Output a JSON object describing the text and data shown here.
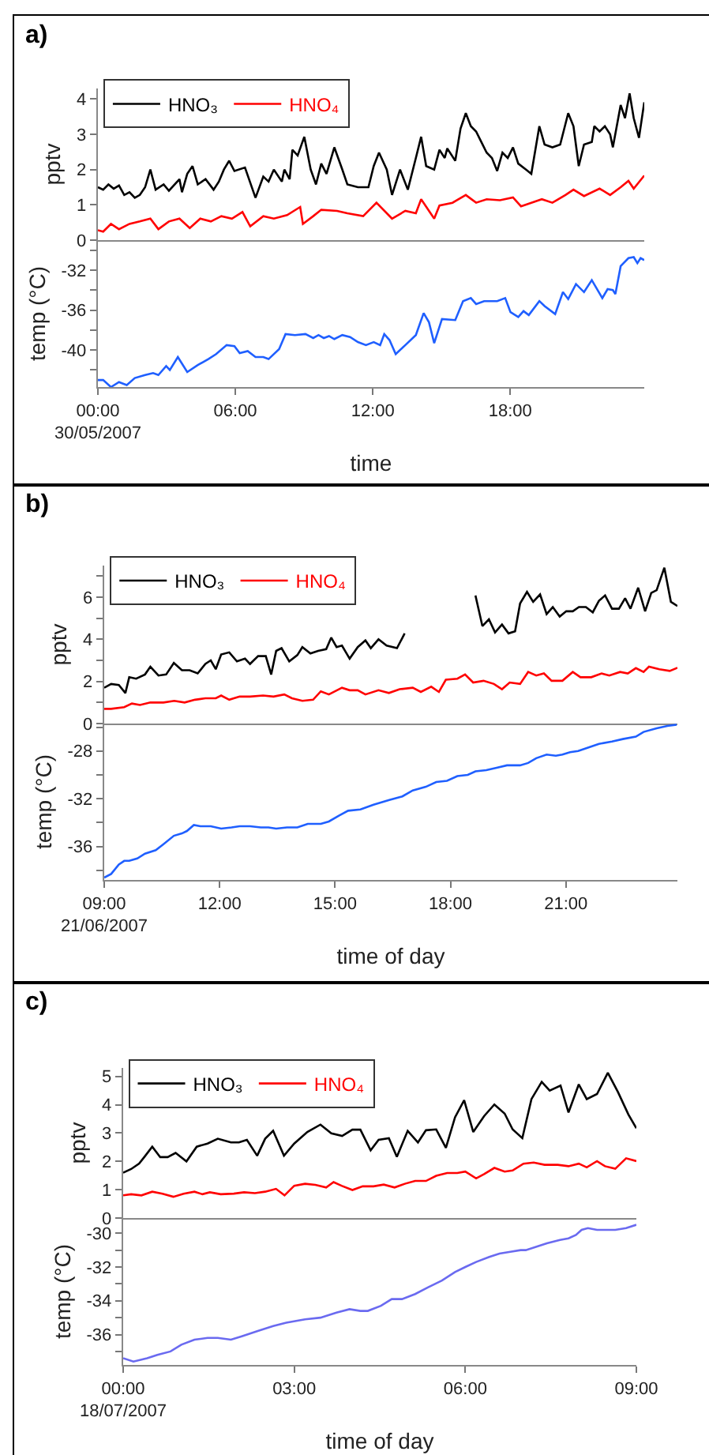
{
  "chart_data": [
    {
      "type": "line",
      "title": "a)",
      "ylabel": "pptv",
      "legend": "top left",
      "tick_labels": "y",
      "xlim": [
        0,
        23.85
      ],
      "ylim": [
        0,
        4.3
      ],
      "yticks": [
        0,
        1,
        2,
        3,
        4
      ],
      "series": [
        {
          "name": "HNO₃",
          "color": "#000000",
          "x": [
            0,
            0.23,
            0.46,
            0.69,
            0.92,
            1.15,
            1.38,
            1.61,
            1.83,
            2.06,
            2.29,
            2.52,
            2.87,
            3.1,
            3.56,
            3.67,
            3.9,
            4.13,
            4.36,
            4.7,
            5.05,
            5.28,
            5.5,
            5.73,
            5.96,
            6.42,
            6.88,
            7.22,
            7.45,
            7.68,
            8.03,
            8.14,
            8.37,
            8.49,
            8.72,
            9.01,
            9.29,
            9.52,
            9.75,
            9.98,
            10.32,
            10.67,
            10.89,
            11.35,
            11.81,
            12.04,
            12.27,
            12.61,
            12.84,
            13.19,
            13.53,
            13.88,
            14.11,
            14.33,
            14.68,
            14.91,
            15.14,
            15.25,
            15.6,
            15.83,
            16.06,
            16.28,
            16.51,
            16.74,
            16.97,
            17.2,
            17.43,
            17.66,
            17.89,
            18.12,
            18.35,
            18.69,
            18.92,
            19.27,
            19.5,
            19.84,
            20.18,
            20.53,
            20.76,
            20.99,
            21.22,
            21.56,
            21.67,
            21.9,
            22.13,
            22.36,
            22.48,
            22.82,
            23.01,
            23.21,
            23.39,
            23.62,
            23.85
          ],
          "values": [
            1.5,
            1.43,
            1.58,
            1.46,
            1.55,
            1.28,
            1.36,
            1.2,
            1.28,
            1.5,
            2.0,
            1.43,
            1.58,
            1.4,
            1.73,
            1.36,
            1.88,
            2.1,
            1.58,
            1.73,
            1.43,
            1.66,
            2.0,
            2.25,
            1.96,
            2.06,
            1.2,
            1.8,
            1.66,
            2.0,
            1.66,
            2.0,
            1.73,
            2.56,
            2.4,
            2.93,
            2.0,
            1.58,
            2.17,
            1.88,
            2.63,
            2.0,
            1.58,
            1.5,
            1.5,
            2.1,
            2.48,
            2.0,
            1.28,
            2.0,
            1.43,
            2.33,
            2.93,
            2.1,
            2.0,
            2.56,
            2.33,
            2.6,
            2.25,
            3.16,
            3.6,
            3.23,
            3.08,
            2.78,
            2.48,
            2.33,
            1.96,
            2.48,
            2.33,
            2.63,
            2.17,
            2.0,
            1.88,
            3.23,
            2.71,
            2.63,
            2.71,
            3.6,
            3.23,
            2.1,
            2.71,
            2.78,
            3.23,
            3.08,
            3.23,
            3.0,
            2.63,
            3.83,
            3.46,
            4.16,
            3.46,
            2.9,
            3.91
          ]
        },
        {
          "name": "HNO₄",
          "color": "#ff0000",
          "x": [
            0,
            0.23,
            0.57,
            0.92,
            1.38,
            1.83,
            2.29,
            2.64,
            3.1,
            3.56,
            4.01,
            4.47,
            4.93,
            5.39,
            5.85,
            6.31,
            6.65,
            7.22,
            7.68,
            8.26,
            8.83,
            8.95,
            9.4,
            9.75,
            10.44,
            10.89,
            11.58,
            12.16,
            12.84,
            13.42,
            13.88,
            14.11,
            14.68,
            14.91,
            15.48,
            16.06,
            16.51,
            16.97,
            17.55,
            18.12,
            18.47,
            18.92,
            19.38,
            19.84,
            20.41,
            20.76,
            21.22,
            21.9,
            22.36,
            22.82,
            23.16,
            23.39,
            23.85
          ],
          "values": [
            0.28,
            0.24,
            0.46,
            0.31,
            0.46,
            0.53,
            0.61,
            0.31,
            0.53,
            0.61,
            0.34,
            0.61,
            0.53,
            0.68,
            0.61,
            0.8,
            0.39,
            0.68,
            0.61,
            0.71,
            0.94,
            0.46,
            0.68,
            0.86,
            0.83,
            0.76,
            0.68,
            1.06,
            0.61,
            0.83,
            0.76,
            1.16,
            0.61,
            0.98,
            1.06,
            1.28,
            1.06,
            1.16,
            1.13,
            1.21,
            0.96,
            1.06,
            1.16,
            1.06,
            1.28,
            1.43,
            1.25,
            1.46,
            1.28,
            1.5,
            1.68,
            1.46,
            1.83
          ]
        }
      ]
    },
    {
      "type": "line",
      "xlabel": "time",
      "ylabel": "temp (°C)",
      "xlim": [
        0,
        23.85
      ],
      "xticks": [
        {
          "value": 0,
          "label": "00:00\n30/05/2007"
        },
        {
          "value": 6,
          "label": "06:00"
        },
        {
          "value": 12,
          "label": "12:00"
        },
        {
          "value": 18,
          "label": "18:00"
        }
      ],
      "ylim": [
        -43.7,
        -29
      ],
      "yticks": [
        {
          "value": -30,
          "label": null
        },
        -32,
        {
          "value": -34,
          "label": null
        },
        -36,
        {
          "value": -38,
          "label": null
        },
        -40,
        {
          "value": -42,
          "label": null
        }
      ],
      "series": [
        {
          "color": "#1f5fff",
          "x": [
            0,
            0.23,
            0.57,
            0.92,
            1.26,
            1.61,
            2.06,
            2.41,
            2.64,
            2.98,
            3.14,
            3.49,
            3.9,
            4.36,
            4.82,
            5.16,
            5.62,
            5.96,
            6.19,
            6.54,
            6.88,
            7.22,
            7.45,
            7.91,
            8.19,
            8.6,
            9.06,
            9.4,
            9.63,
            9.86,
            10.09,
            10.32,
            10.67,
            11.01,
            11.35,
            11.7,
            12.04,
            12.32,
            12.5,
            12.73,
            13.0,
            13.42,
            13.88,
            14.22,
            14.45,
            14.68,
            15.02,
            15.6,
            15.94,
            16.28,
            16.51,
            16.86,
            17.43,
            17.78,
            18.01,
            18.35,
            18.58,
            18.81,
            19.27,
            19.5,
            19.96,
            20.3,
            20.53,
            20.87,
            21.22,
            21.56,
            22.02,
            22.25,
            22.48,
            22.59,
            22.82,
            23.16,
            23.39,
            23.55,
            23.69,
            23.85
          ],
          "values": [
            -43.0,
            -43.0,
            -43.7,
            -43.2,
            -43.5,
            -42.8,
            -42.5,
            -42.3,
            -42.5,
            -41.6,
            -42,
            -40.7,
            -42.2,
            -41.5,
            -40.9,
            -40.4,
            -39.5,
            -39.6,
            -40.3,
            -40.1,
            -40.7,
            -40.7,
            -40.9,
            -39.9,
            -38.4,
            -38.5,
            -38.4,
            -38.8,
            -38.5,
            -38.8,
            -38.6,
            -38.9,
            -38.5,
            -38.7,
            -39.2,
            -39.5,
            -39.2,
            -39.5,
            -38.4,
            -39.0,
            -40.4,
            -39.5,
            -38.5,
            -36.3,
            -37.2,
            -39.3,
            -36.9,
            -37,
            -35.1,
            -34.8,
            -35.4,
            -35.1,
            -35.1,
            -34.8,
            -36.2,
            -36.7,
            -36.1,
            -36.5,
            -35.1,
            -35.6,
            -36.4,
            -34.2,
            -34.9,
            -33.4,
            -34.2,
            -33,
            -34.8,
            -33.9,
            -34.0,
            -34.4,
            -31.6,
            -30.8,
            -30.7,
            -31.3,
            -30.8,
            -31
          ]
        }
      ]
    },
    {
      "type": "line",
      "title": "b)",
      "ylabel": "pptv",
      "legend": "top left",
      "tick_labels": "y",
      "xlim": [
        9,
        23.9
      ],
      "ylim": [
        0,
        7.5
      ],
      "yticks": [
        0,
        {
          "value": 1,
          "label": null
        },
        2,
        {
          "value": 3,
          "label": null
        },
        4,
        {
          "value": 5,
          "label": null
        },
        6,
        {
          "value": 7,
          "label": null
        }
      ],
      "series": [
        {
          "name": "HNO₃",
          "color": "#000000",
          "x": [
            9.0,
            9.18,
            9.38,
            9.55,
            9.65,
            9.83,
            10.06,
            10.2,
            10.41,
            10.61,
            10.81,
            11.02,
            11.22,
            11.43,
            11.63,
            11.77,
            11.9,
            12.04,
            12.25,
            12.45,
            12.66,
            12.79,
            13.0,
            13.2,
            13.34,
            13.47,
            13.61,
            13.81,
            14.02,
            14.15,
            14.36,
            14.56,
            14.77,
            14.9,
            15.04,
            15.18,
            15.38,
            15.59,
            15.79,
            15.93,
            16.13,
            16.34,
            16.61,
            16.81,
            17.7,
            18.65,
            18.83,
            19.0,
            19.16,
            19.34,
            19.51,
            19.68,
            19.81,
            19.99,
            20.15,
            20.33,
            20.5,
            20.66,
            20.84,
            21.01,
            21.18,
            21.34,
            21.52,
            21.7,
            21.86,
            22.02,
            22.2,
            22.38,
            22.54,
            22.68,
            22.88,
            23.06,
            23.22,
            23.36,
            23.56,
            23.73,
            23.9
          ],
          "values": [
            1.7,
            1.88,
            1.83,
            1.45,
            2.2,
            2.13,
            2.33,
            2.7,
            2.28,
            2.33,
            2.88,
            2.53,
            2.53,
            2.38,
            2.83,
            3.0,
            2.58,
            3.28,
            3.38,
            2.95,
            3.08,
            2.83,
            3.2,
            3.2,
            2.33,
            3.45,
            3.58,
            2.95,
            3.25,
            3.63,
            3.33,
            3.45,
            3.53,
            4.08,
            3.63,
            3.7,
            3.08,
            3.63,
            3.95,
            3.58,
            4.0,
            3.7,
            3.58,
            4.28,
            null,
            6.08,
            4.63,
            4.95,
            4.33,
            4.7,
            4.28,
            4.38,
            5.7,
            6.25,
            5.78,
            6.13,
            5.2,
            5.53,
            5.08,
            5.33,
            5.33,
            5.53,
            5.53,
            5.28,
            5.83,
            6.08,
            5.45,
            5.45,
            5.95,
            5.45,
            6.45,
            5.33,
            6.2,
            6.33,
            7.4,
            5.78,
            5.58
          ]
        },
        {
          "name": "HNO₄",
          "color": "#ff0000",
          "x": [
            9.0,
            9.18,
            9.52,
            9.72,
            9.93,
            10.2,
            10.54,
            10.82,
            11.09,
            11.36,
            11.63,
            11.9,
            12.04,
            12.25,
            12.52,
            12.79,
            13.13,
            13.4,
            13.68,
            13.88,
            14.15,
            14.43,
            14.63,
            14.84,
            15.18,
            15.38,
            15.59,
            15.79,
            16.13,
            16.4,
            16.68,
            17.02,
            17.23,
            17.5,
            17.7,
            17.88,
            18.18,
            18.38,
            18.59,
            18.86,
            19.13,
            19.34,
            19.54,
            19.81,
            20.02,
            20.23,
            20.43,
            20.63,
            20.91,
            21.18,
            21.38,
            21.66,
            21.93,
            22.13,
            22.41,
            22.61,
            22.82,
            23.02,
            23.16,
            23.43,
            23.7,
            23.9
          ],
          "values": [
            0.7,
            0.7,
            0.78,
            0.95,
            0.88,
            1.0,
            1.0,
            1.08,
            1.0,
            1.13,
            1.2,
            1.2,
            1.33,
            1.13,
            1.28,
            1.28,
            1.33,
            1.28,
            1.38,
            1.2,
            1.08,
            1.13,
            1.53,
            1.38,
            1.7,
            1.58,
            1.58,
            1.38,
            1.58,
            1.45,
            1.63,
            1.7,
            1.5,
            1.75,
            1.5,
            2.08,
            2.13,
            2.33,
            1.95,
            2.03,
            1.88,
            1.63,
            1.95,
            1.88,
            2.45,
            2.28,
            2.38,
            2.03,
            2.03,
            2.45,
            2.2,
            2.2,
            2.38,
            2.28,
            2.45,
            2.38,
            2.63,
            2.45,
            2.7,
            2.58,
            2.5,
            2.65
          ]
        }
      ]
    },
    {
      "type": "line",
      "xlabel": "time of day",
      "ylabel": "temp (°C)",
      "xlim": [
        9,
        23.9
      ],
      "xticks": [
        {
          "value": 9,
          "label": "09:00\n21/06/2007"
        },
        {
          "value": 12,
          "label": "12:00"
        },
        {
          "value": 15,
          "label": "15:00"
        },
        {
          "value": 18,
          "label": "18:00"
        },
        {
          "value": 21,
          "label": "21:00"
        }
      ],
      "ylim": [
        -38.8,
        -25.7
      ],
      "yticks": [
        {
          "value": -26,
          "label": null
        },
        -28,
        {
          "value": -30,
          "label": null
        },
        -32,
        {
          "value": -34,
          "label": null
        },
        -36,
        {
          "value": -38,
          "label": null
        }
      ],
      "series": [
        {
          "color": "#1f5fff",
          "x": [
            9.0,
            9.18,
            9.38,
            9.52,
            9.65,
            9.86,
            10.06,
            10.34,
            10.54,
            10.81,
            11.02,
            11.15,
            11.33,
            11.5,
            11.77,
            12.04,
            12.31,
            12.52,
            12.79,
            13.07,
            13.27,
            13.47,
            13.75,
            14.02,
            14.29,
            14.63,
            14.84,
            15.11,
            15.34,
            15.66,
            16.0,
            16.41,
            16.75,
            17.02,
            17.36,
            17.63,
            17.91,
            18.18,
            18.45,
            18.65,
            18.93,
            19.2,
            19.47,
            19.81,
            20.02,
            20.23,
            20.5,
            20.74,
            20.91,
            21.11,
            21.32,
            21.59,
            21.86,
            22.2,
            22.48,
            22.82,
            23.02,
            23.36,
            23.64,
            23.88
          ],
          "values": [
            -38.6,
            -38.3,
            -37.5,
            -37.2,
            -37.2,
            -37,
            -36.6,
            -36.3,
            -35.8,
            -35.1,
            -34.9,
            -34.7,
            -34.2,
            -34.3,
            -34.3,
            -34.5,
            -34.4,
            -34.3,
            -34.3,
            -34.4,
            -34.4,
            -34.5,
            -34.4,
            -34.4,
            -34.1,
            -34.1,
            -33.9,
            -33.4,
            -33,
            -32.9,
            -32.5,
            -32.1,
            -31.8,
            -31.3,
            -31.0,
            -30.6,
            -30.5,
            -30.1,
            -30.0,
            -29.7,
            -29.6,
            -29.4,
            -29.2,
            -29.2,
            -29.0,
            -28.6,
            -28.3,
            -28.4,
            -28.3,
            -28.1,
            -28.0,
            -27.7,
            -27.4,
            -27.2,
            -27.0,
            -26.8,
            -26.4,
            -26.1,
            -25.9,
            -25.8
          ]
        }
      ]
    },
    {
      "type": "line",
      "title": "c)",
      "ylabel": "pptv",
      "legend": "top left",
      "tick_labels": "y",
      "xlim": [
        0,
        9
      ],
      "ylim": [
        0,
        5.3
      ],
      "yticks": [
        0,
        1,
        2,
        3,
        4,
        5
      ],
      "series": [
        {
          "name": "HNO₃",
          "color": "#000000",
          "x": [
            0,
            0.14,
            0.28,
            0.37,
            0.51,
            0.65,
            0.78,
            0.92,
            1.11,
            1.29,
            1.48,
            1.66,
            1.89,
            2.03,
            2.17,
            2.35,
            2.49,
            2.63,
            2.82,
            3.0,
            3.23,
            3.46,
            3.65,
            3.84,
            4.02,
            4.16,
            4.34,
            4.48,
            4.66,
            4.8,
            4.99,
            5.17,
            5.31,
            5.49,
            5.66,
            5.82,
            5.98,
            6.14,
            6.33,
            6.51,
            6.69,
            6.83,
            7.0,
            7.16,
            7.34,
            7.48,
            7.67,
            7.81,
            7.99,
            8.13,
            8.31,
            8.5,
            8.68,
            8.86,
            9.0
          ],
          "values": [
            1.6,
            1.73,
            1.92,
            2.15,
            2.52,
            2.15,
            2.15,
            2.3,
            2.0,
            2.52,
            2.63,
            2.8,
            2.67,
            2.67,
            2.76,
            2.2,
            2.8,
            3.08,
            2.2,
            2.63,
            3.04,
            3.3,
            2.99,
            2.9,
            3.12,
            3.12,
            2.39,
            2.76,
            2.82,
            2.16,
            3.08,
            2.67,
            3.1,
            3.13,
            2.48,
            3.56,
            4.16,
            3.04,
            3.6,
            4.01,
            3.69,
            3.13,
            2.82,
            4.2,
            4.81,
            4.5,
            4.68,
            3.73,
            4.72,
            4.2,
            4.38,
            5.13,
            4.44,
            3.66,
            3.17
          ]
        },
        {
          "name": "HNO₄",
          "color": "#ff0000",
          "x": [
            0,
            0.14,
            0.32,
            0.51,
            0.69,
            0.88,
            1.06,
            1.25,
            1.39,
            1.52,
            1.71,
            1.94,
            2.12,
            2.31,
            2.49,
            2.68,
            2.83,
            3.0,
            3.19,
            3.37,
            3.56,
            3.69,
            3.83,
            4.02,
            4.2,
            4.39,
            4.57,
            4.76,
            4.94,
            5.12,
            5.31,
            5.49,
            5.68,
            5.86,
            6.0,
            6.19,
            6.33,
            6.51,
            6.69,
            6.83,
            7.02,
            7.2,
            7.39,
            7.62,
            7.81,
            7.99,
            8.13,
            8.31,
            8.45,
            8.63,
            8.82,
            9.0
          ],
          "values": [
            0.8,
            0.84,
            0.8,
            0.93,
            0.86,
            0.75,
            0.86,
            0.93,
            0.84,
            0.91,
            0.84,
            0.86,
            0.91,
            0.88,
            0.93,
            1.03,
            0.8,
            1.14,
            1.21,
            1.17,
            1.08,
            1.27,
            1.14,
            0.99,
            1.12,
            1.12,
            1.18,
            1.08,
            1.21,
            1.31,
            1.31,
            1.49,
            1.59,
            1.59,
            1.64,
            1.4,
            1.55,
            1.77,
            1.64,
            1.68,
            1.92,
            1.96,
            1.88,
            1.88,
            1.83,
            1.92,
            1.79,
            2.01,
            1.83,
            1.74,
            2.11,
            2.01
          ]
        }
      ]
    },
    {
      "type": "line",
      "xlabel": "time of day",
      "ylabel": "temp (°C)",
      "xlim": [
        0,
        9
      ],
      "xticks": [
        {
          "value": 0,
          "label": "00:00\n18/07/2007"
        },
        {
          "value": 3,
          "label": "03:00"
        },
        {
          "value": 6,
          "label": "06:00"
        },
        {
          "value": 9,
          "label": "09:00"
        }
      ],
      "ylim": [
        -37.8,
        -29.1
      ],
      "yticks": [
        -30,
        {
          "value": -31,
          "label": null
        },
        -32,
        {
          "value": -33,
          "label": null
        },
        -34,
        {
          "value": -35,
          "label": null
        },
        -36,
        {
          "value": -37,
          "label": null
        }
      ],
      "series": [
        {
          "color": "#6a6af0",
          "x": [
            0,
            0.18,
            0.42,
            0.6,
            0.83,
            1.02,
            1.25,
            1.48,
            1.66,
            1.89,
            2.08,
            2.35,
            2.63,
            2.86,
            3.19,
            3.46,
            3.74,
            3.97,
            4.16,
            4.29,
            4.52,
            4.71,
            4.89,
            5.12,
            5.35,
            5.59,
            5.82,
            6.0,
            6.19,
            6.42,
            6.6,
            6.79,
            6.97,
            7.06,
            7.25,
            7.43,
            7.66,
            7.81,
            7.94,
            8.04,
            8.15,
            8.31,
            8.45,
            8.63,
            8.82,
            9.0
          ],
          "values": [
            -37.4,
            -37.6,
            -37.4,
            -37.2,
            -37.0,
            -36.6,
            -36.3,
            -36.2,
            -36.2,
            -36.3,
            -36.1,
            -35.8,
            -35.5,
            -35.3,
            -35.1,
            -35.0,
            -34.7,
            -34.5,
            -34.6,
            -34.6,
            -34.3,
            -33.9,
            -33.9,
            -33.6,
            -33.2,
            -32.8,
            -32.3,
            -32.0,
            -31.7,
            -31.4,
            -31.2,
            -31.1,
            -31.0,
            -31.0,
            -30.8,
            -30.6,
            -30.4,
            -30.3,
            -30.1,
            -29.8,
            -29.7,
            -29.8,
            -29.8,
            -29.8,
            -29.7,
            -29.5
          ]
        }
      ]
    }
  ]
}
